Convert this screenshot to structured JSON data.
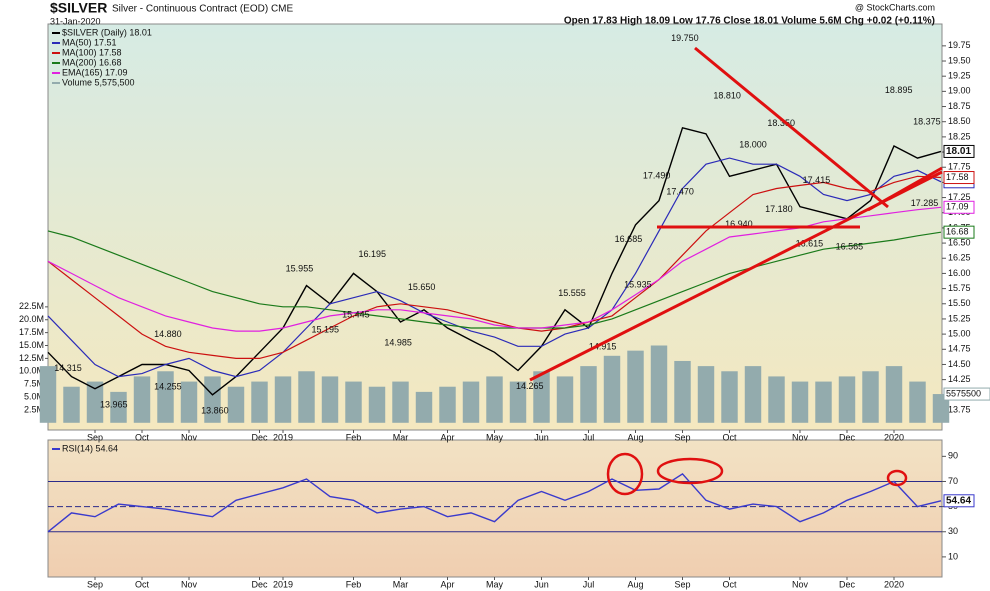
{
  "chart_data": [
    {
      "type": "line",
      "title": "$SILVER",
      "subtitle": "Silver - Continuous Contract (EOD) CME",
      "date": "31-Jan-2020",
      "quote": "Open 17.83 High 18.09 Low 17.76 Close 18.01 Volume 5.6M Chg +0.02 (+0.11%)",
      "source": "@ StockCharts.com",
      "categories": [
        null,
        null,
        "Sep",
        null,
        "Oct",
        null,
        "Nov",
        null,
        null,
        "Dec",
        "2019",
        null,
        null,
        "Feb",
        null,
        "Mar",
        null,
        "Apr",
        null,
        "May",
        null,
        "Jun",
        null,
        "Jul",
        null,
        "Aug",
        null,
        "Sep",
        null,
        "Oct",
        null,
        null,
        "Nov",
        null,
        "Dec",
        null,
        "2020",
        null,
        null
      ],
      "series": [
        {
          "name": "$SILVER (Daily) 18.01",
          "color": "#000000",
          "values": [
            14.7,
            14.3,
            14.1,
            14.3,
            14.5,
            14.5,
            14.4,
            14.0,
            14.3,
            14.7,
            15.1,
            15.8,
            15.5,
            16.0,
            15.7,
            15.2,
            15.4,
            15.1,
            14.9,
            14.7,
            14.4,
            14.8,
            15.4,
            15.1,
            16.0,
            16.8,
            17.2,
            18.4,
            18.3,
            17.6,
            17.7,
            17.8,
            17.1,
            17.0,
            16.9,
            17.2,
            18.1,
            17.9,
            18.01
          ]
        },
        {
          "name": "MA(50) 17.51",
          "color": "#2b2bb8",
          "values": [
            15.3,
            14.9,
            14.5,
            14.3,
            14.35,
            14.5,
            14.6,
            14.4,
            14.3,
            14.4,
            14.7,
            15.1,
            15.5,
            15.6,
            15.7,
            15.55,
            15.35,
            15.2,
            15.05,
            14.95,
            14.8,
            14.8,
            15.0,
            15.1,
            15.4,
            16.0,
            16.7,
            17.4,
            17.8,
            17.9,
            17.8,
            17.8,
            17.6,
            17.3,
            17.2,
            17.3,
            17.6,
            17.7,
            17.51
          ]
        },
        {
          "name": "MA(100) 17.58",
          "color": "#cc1010",
          "values": [
            16.2,
            15.9,
            15.6,
            15.3,
            15.0,
            14.8,
            14.7,
            14.65,
            14.6,
            14.6,
            14.7,
            14.9,
            15.1,
            15.3,
            15.45,
            15.5,
            15.45,
            15.4,
            15.3,
            15.2,
            15.1,
            15.05,
            15.1,
            15.2,
            15.3,
            15.6,
            15.9,
            16.3,
            16.7,
            17.0,
            17.3,
            17.4,
            17.45,
            17.5,
            17.4,
            17.35,
            17.5,
            17.6,
            17.58
          ]
        },
        {
          "name": "MA(200) 16.68",
          "color": "#1a7a1a",
          "values": [
            16.7,
            16.6,
            16.45,
            16.3,
            16.15,
            16.0,
            15.85,
            15.7,
            15.6,
            15.5,
            15.45,
            15.45,
            15.4,
            15.35,
            15.3,
            15.25,
            15.2,
            15.15,
            15.1,
            15.1,
            15.1,
            15.1,
            15.1,
            15.15,
            15.25,
            15.4,
            15.55,
            15.7,
            15.85,
            16.0,
            16.1,
            16.2,
            16.3,
            16.4,
            16.45,
            16.5,
            16.55,
            16.62,
            16.68
          ]
        },
        {
          "name": "EMA(165) 17.09",
          "color": "#e020e0",
          "values": [
            16.2,
            16.0,
            15.8,
            15.6,
            15.45,
            15.3,
            15.2,
            15.1,
            15.05,
            15.05,
            15.1,
            15.2,
            15.3,
            15.35,
            15.4,
            15.4,
            15.35,
            15.3,
            15.25,
            15.15,
            15.1,
            15.1,
            15.15,
            15.2,
            15.4,
            15.65,
            15.9,
            16.2,
            16.4,
            16.6,
            16.65,
            16.7,
            16.75,
            16.85,
            16.9,
            16.95,
            17.0,
            17.05,
            17.09
          ]
        },
        {
          "name": "Volume 5,575,500",
          "color": "#93abad",
          "axis": "y2",
          "type": "bar",
          "values": [
            11000000,
            7000000,
            8000000,
            6000000,
            9000000,
            10000000,
            8000000,
            9000000,
            7000000,
            8000000,
            9000000,
            10000000,
            9000000,
            8000000,
            7000000,
            8000000,
            6000000,
            7000000,
            8000000,
            9000000,
            8000000,
            10000000,
            9000000,
            11000000,
            13000000,
            14000000,
            15000000,
            12000000,
            11000000,
            10000000,
            11000000,
            9000000,
            8000000,
            8000000,
            9000000,
            10000000,
            11000000,
            8000000,
            5575500
          ]
        }
      ],
      "ylim": [
        13.42,
        20.11
      ],
      "yticks": [
        13.75,
        {
          "value": 14,
          "label": "14.00"
        },
        14.25,
        {
          "value": 14.5,
          "label": "14.50"
        },
        14.75,
        {
          "value": 15,
          "label": "15.00"
        },
        15.25,
        {
          "value": 15.5,
          "label": "15.50"
        },
        15.75,
        {
          "value": 16,
          "label": "16.00"
        },
        16.25,
        {
          "value": 16.5,
          "label": "16.50"
        },
        16.75,
        {
          "value": 17,
          "label": "17.00"
        },
        17.25,
        {
          "value": 17.5,
          "label": "17.50"
        },
        17.75,
        {
          "value": 18,
          "label": "18.00"
        },
        18.25,
        {
          "value": 18.5,
          "label": "18.50"
        },
        18.75,
        {
          "value": 19,
          "label": "19.00"
        },
        19.25,
        {
          "value": 19.5,
          "label": "19.50"
        },
        19.75
      ],
      "y2lim": [
        -1400000,
        77400000
      ],
      "y2ticks": [
        {
          "value": 2500000,
          "label": "2.5M"
        },
        {
          "value": 5000000,
          "label": "5.0M"
        },
        {
          "value": 7500000,
          "label": "7.5M"
        },
        {
          "value": 10000000,
          "label": "10.0M"
        },
        {
          "value": 12500000,
          "label": "12.5M"
        },
        {
          "value": 15000000,
          "label": "15.0M"
        },
        {
          "value": 17500000,
          "label": "17.5M"
        },
        {
          "value": 20000000,
          "label": "20.0M"
        },
        {
          "value": 22500000,
          "label": "22.5M"
        }
      ],
      "grid": false,
      "annotations": [
        {
          "text": "14.315",
          "x": 0.85,
          "y": 14.315
        },
        {
          "text": "13.965",
          "x": 2.8,
          "y": 13.965
        },
        {
          "text": "14.880",
          "x": 5.1,
          "y": 14.88
        },
        {
          "text": "14.255",
          "x": 5.1,
          "y": 14.255
        },
        {
          "text": "13.860",
          "x": 7.1,
          "y": 13.86
        },
        {
          "text": "15.955",
          "x": 10.7,
          "y": 15.955
        },
        {
          "text": "15.195",
          "x": 11.8,
          "y": 15.195
        },
        {
          "text": "15.445",
          "x": 13.1,
          "y": 15.445
        },
        {
          "text": "16.195",
          "x": 13.8,
          "y": 16.195
        },
        {
          "text": "14.985",
          "x": 14.9,
          "y": 14.985
        },
        {
          "text": "15.650",
          "x": 15.9,
          "y": 15.65
        },
        {
          "text": "14.265",
          "x": 20.5,
          "y": 14.265
        },
        {
          "text": "14.915",
          "x": 23.6,
          "y": 14.915
        },
        {
          "text": "15.555",
          "x": 22.3,
          "y": 15.555
        },
        {
          "text": "15.935",
          "x": 25.1,
          "y": 15.935
        },
        {
          "text": "16.685",
          "x": 24.7,
          "y": 16.685
        },
        {
          "text": "17.490",
          "x": 25.9,
          "y": 17.49
        },
        {
          "text": "17.470",
          "x": 26.9,
          "y": 17.47
        },
        {
          "text": "19.750",
          "x": 27.1,
          "y": 19.75
        },
        {
          "text": "18.810",
          "x": 28.9,
          "y": 18.81
        },
        {
          "text": "18.000",
          "x": 30.0,
          "y": 18.0
        },
        {
          "text": "17.180",
          "x": 31.1,
          "y": 17.18
        },
        {
          "text": "16.940",
          "x": 29.4,
          "y": 16.94
        },
        {
          "text": "18.350",
          "x": 31.2,
          "y": 18.35
        },
        {
          "text": "17.415",
          "x": 32.7,
          "y": 17.415
        },
        {
          "text": "16.615",
          "x": 32.4,
          "y": 16.615
        },
        {
          "text": "16.565",
          "x": 34.1,
          "y": 16.565
        },
        {
          "text": "18.895",
          "x": 36.2,
          "y": 18.895
        },
        {
          "text": "18.375",
          "x": 37.4,
          "y": 18.375
        },
        {
          "text": "17.285",
          "x": 37.3,
          "y": 17.285
        }
      ]
    },
    {
      "type": "line",
      "categories": [
        null,
        null,
        "Sep",
        null,
        "Oct",
        null,
        "Nov",
        null,
        null,
        "Dec",
        "2019",
        null,
        null,
        "Feb",
        null,
        "Mar",
        null,
        "Apr",
        null,
        "May",
        null,
        "Jun",
        null,
        "Jul",
        null,
        "Aug",
        null,
        "Sep",
        null,
        "Oct",
        null,
        null,
        "Nov",
        null,
        "Dec",
        null,
        "2020",
        null,
        null
      ],
      "series": [
        {
          "name": "RSI(14) 54.64",
          "color": "#3a3acc",
          "values": [
            30,
            45,
            42,
            52,
            50,
            48,
            45,
            42,
            55,
            60,
            65,
            72,
            58,
            55,
            45,
            48,
            50,
            42,
            45,
            38,
            55,
            62,
            55,
            62,
            72,
            63,
            64,
            76,
            55,
            48,
            52,
            50,
            38,
            45,
            55,
            62,
            70,
            50,
            54.64
          ]
        }
      ],
      "ylim": [
        -6,
        103
      ],
      "yticks": [
        10,
        30,
        50,
        70,
        90
      ],
      "levels": [
        70,
        50,
        30
      ]
    }
  ]
}
